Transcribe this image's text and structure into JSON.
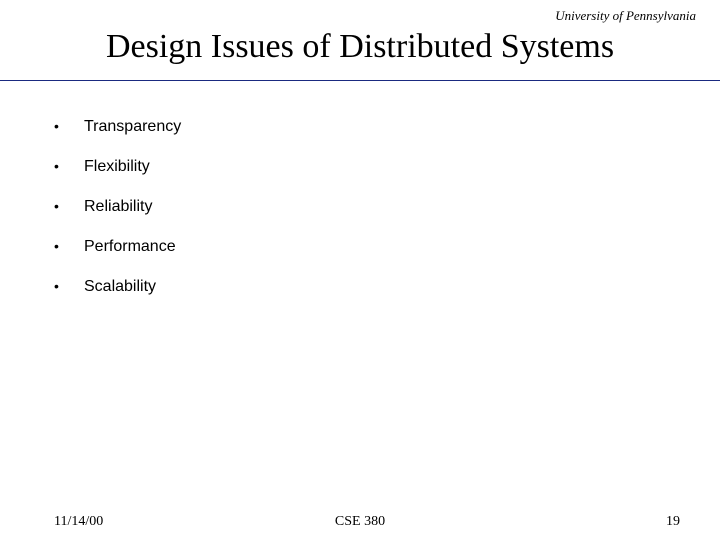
{
  "header": {
    "affiliation": "University of Pennsylvania",
    "title": "Design Issues of Distributed Systems"
  },
  "rule": {
    "color": "#1a2a80"
  },
  "bullets": {
    "items": [
      {
        "label": "Transparency"
      },
      {
        "label": "Flexibility"
      },
      {
        "label": "Reliability"
      },
      {
        "label": "Performance"
      },
      {
        "label": "Scalability"
      }
    ]
  },
  "footer": {
    "date": "11/14/00",
    "course": "CSE 380",
    "page": "19"
  },
  "style": {
    "background_color": "#ffffff",
    "title_fontsize": 34,
    "body_fontsize": 16,
    "footer_fontsize": 14,
    "affiliation_fontsize": 13
  }
}
